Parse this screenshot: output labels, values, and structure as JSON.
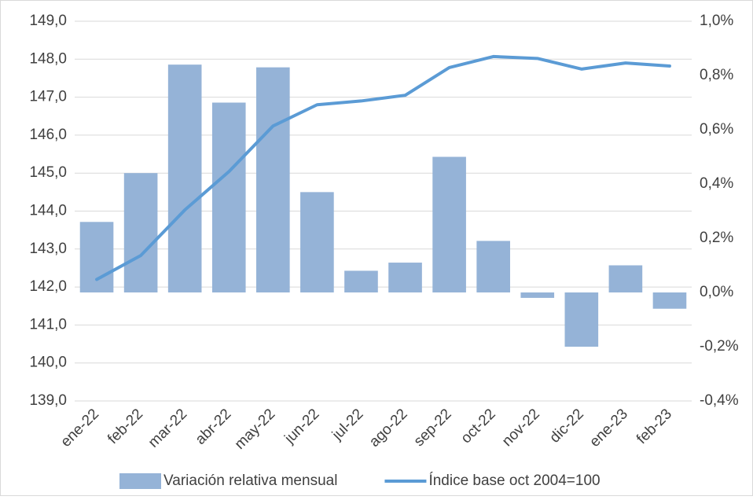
{
  "chart_data": {
    "type": "bar-line",
    "categories": [
      "ene-22",
      "feb-22",
      "mar-22",
      "abr-22",
      "may-22",
      "jun-22",
      "jul-22",
      "ago-22",
      "sep-22",
      "oct-22",
      "nov-22",
      "dic-22",
      "ene-23",
      "feb-23"
    ],
    "series": [
      {
        "name": "Variación relativa mensual",
        "type": "bar",
        "axis": "y2",
        "color": "#95b3d7",
        "values": [
          0.26,
          0.44,
          0.84,
          0.7,
          0.83,
          0.37,
          0.08,
          0.11,
          0.5,
          0.19,
          -0.02,
          -0.2,
          0.1,
          -0.06
        ]
      },
      {
        "name": "Índice base oct 2004=100",
        "type": "line",
        "axis": "y",
        "color": "#5b9bd5",
        "values": [
          142.2,
          142.83,
          144.03,
          145.04,
          146.24,
          146.8,
          146.9,
          147.05,
          147.78,
          148.07,
          148.02,
          147.74,
          147.9,
          147.82
        ]
      }
    ],
    "ylim": [
      139,
      149
    ],
    "yticks": [
      {
        "value": 139,
        "label": "139,0"
      },
      {
        "value": 140,
        "label": "140,0"
      },
      {
        "value": 141,
        "label": "141,0"
      },
      {
        "value": 142,
        "label": "142,0"
      },
      {
        "value": 143,
        "label": "143,0"
      },
      {
        "value": 144,
        "label": "144,0"
      },
      {
        "value": 145,
        "label": "145,0"
      },
      {
        "value": 146,
        "label": "146,0"
      },
      {
        "value": 147,
        "label": "147,0"
      },
      {
        "value": 148,
        "label": "148,0"
      },
      {
        "value": 149,
        "label": "149,0"
      }
    ],
    "y2lim": [
      -0.4,
      1.0
    ],
    "y2ticks": [
      {
        "value": -0.4,
        "label": "-0,4%"
      },
      {
        "value": -0.2,
        "label": "-0,2%"
      },
      {
        "value": 0,
        "label": "0,0%"
      },
      {
        "value": 0.2,
        "label": "0,2%"
      },
      {
        "value": 0.4,
        "label": "0,4%"
      },
      {
        "value": 0.6,
        "label": "0,6%"
      },
      {
        "value": 0.8,
        "label": "0,8%"
      },
      {
        "value": 1.0,
        "label": "1,0%"
      }
    ],
    "grid": true,
    "legend": "bottom"
  }
}
